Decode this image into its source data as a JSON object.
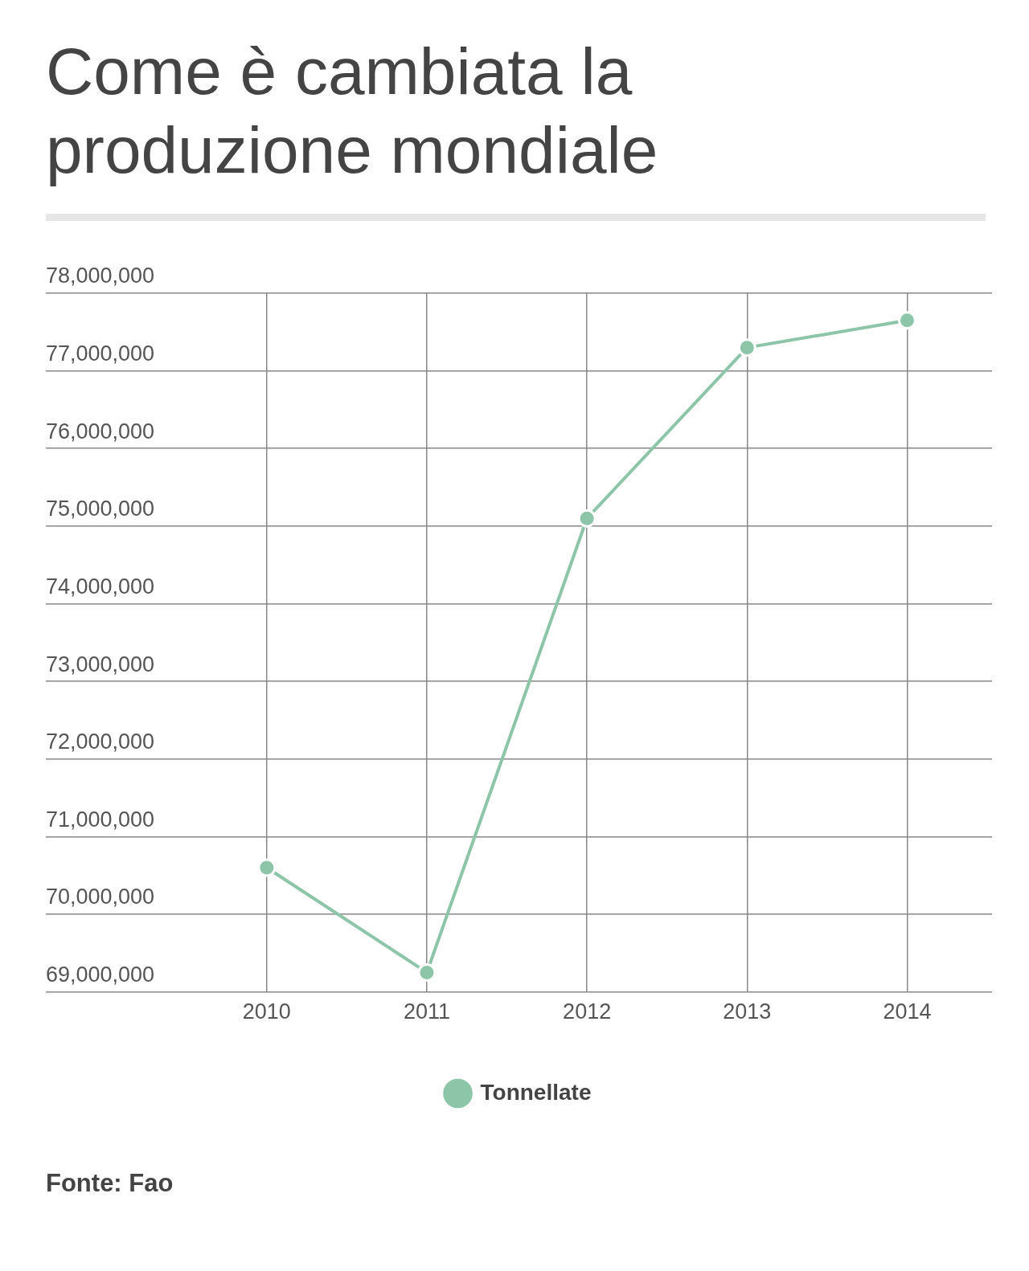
{
  "chart_data": {
    "type": "line",
    "title": "Come è cambiata la produzione mondiale",
    "x": [
      2010,
      2011,
      2012,
      2013,
      2014
    ],
    "series": [
      {
        "name": "Tonnellate",
        "color": "#8cc5a7",
        "values": [
          70600000,
          69250000,
          75100000,
          77300000,
          77650000
        ]
      }
    ],
    "xlim": [
      2008.62,
      2014.53
    ],
    "xticks": [
      2010,
      2011,
      2012,
      2013,
      2014
    ],
    "ylim": [
      69000000,
      78000000
    ],
    "yticks": [
      {
        "value": 69000000,
        "label": "69,000,000"
      },
      {
        "value": 70000000,
        "label": "70,000,000"
      },
      {
        "value": 71000000,
        "label": "71,000,000"
      },
      {
        "value": 72000000,
        "label": "72,000,000"
      },
      {
        "value": 73000000,
        "label": "73,000,000"
      },
      {
        "value": 74000000,
        "label": "74,000,000"
      },
      {
        "value": 75000000,
        "label": "75,000,000"
      },
      {
        "value": 76000000,
        "label": "76,000,000"
      },
      {
        "value": 77000000,
        "label": "77,000,000"
      },
      {
        "value": 78000000,
        "label": "78,000,000"
      }
    ],
    "grid": true,
    "legend": "bottom",
    "marker": "circle",
    "line_style": "solid",
    "annotations": [
      "Fonte: Fao"
    ]
  }
}
